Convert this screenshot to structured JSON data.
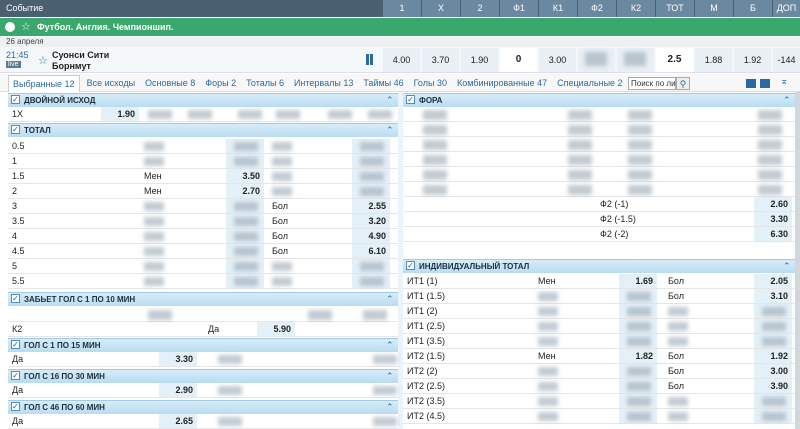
{
  "header": {
    "event_label": "Событие",
    "columns": [
      "1",
      "X",
      "2",
      "Ф1",
      "К1",
      "Ф2",
      "К2",
      "ТОТ",
      "М",
      "Б",
      "ДОП"
    ]
  },
  "league": "Футбол. Англия. Чемпионшип.",
  "date": "26 апреля",
  "match": {
    "time": "21:45",
    "live": "live",
    "team1": "Суонси Сити",
    "team2": "Борнмут",
    "odds": [
      "4.00",
      "3.70",
      "1.90",
      "0",
      "3.00",
      null,
      null,
      "2.5",
      "1.88",
      "1.92",
      "-144"
    ]
  },
  "tabs": [
    "Выбранные 12",
    "Все исходы",
    "Основные 8",
    "Форы 2",
    "Тоталы 6",
    "Интервалы 13",
    "Таймы 46",
    "Голы 30",
    "Комбинированные 47",
    "Специальные 2"
  ],
  "search_placeholder": "Поиск по лини",
  "left_markets": [
    {
      "title": "ДВОЙНОЙ ИСХОД",
      "rows": [
        {
          "label": "1X",
          "odds": "1.90"
        }
      ]
    },
    {
      "title": "ТОТАЛ",
      "rows": [
        {
          "label": "0.5"
        },
        {
          "label": "1"
        },
        {
          "label": "1.5",
          "under": "Мен",
          "under_odds": "3.50"
        },
        {
          "label": "2",
          "under": "Мен",
          "under_odds": "2.70"
        },
        {
          "label": "3",
          "over": "Бол",
          "over_odds": "2.55"
        },
        {
          "label": "3.5",
          "over": "Бол",
          "over_odds": "3.20"
        },
        {
          "label": "4",
          "over": "Бол",
          "over_odds": "4.90"
        },
        {
          "label": "4.5",
          "over": "Бол",
          "over_odds": "6.10"
        },
        {
          "label": "5"
        },
        {
          "label": "5.5"
        }
      ]
    },
    {
      "title": "ЗАБЬЕТ ГОЛ С 1 ПО 10 МИН",
      "rows": [
        {
          "label": "К2",
          "outcome": "Да",
          "odds": "5.90"
        }
      ]
    },
    {
      "title": "ГОЛ С 1 ПО 15 МИН",
      "rows": [
        {
          "label": "Да",
          "odds": "3.30"
        }
      ]
    },
    {
      "title": "ГОЛ С 16 ПО 30 МИН",
      "rows": [
        {
          "label": "Да",
          "odds": "2.90"
        }
      ]
    },
    {
      "title": "ГОЛ С 46 ПО 60 МИН",
      "rows": [
        {
          "label": "Да",
          "odds": "2.65"
        }
      ]
    }
  ],
  "right_markets": [
    {
      "title": "ФОРА",
      "rows": [
        {
          "outcome": "Ф2 (-1)",
          "odds": "2.60"
        },
        {
          "outcome": "Ф2 (-1.5)",
          "odds": "3.30"
        },
        {
          "outcome": "Ф2 (-2)",
          "odds": "6.30"
        }
      ]
    },
    {
      "title": "ИНДИВИДУАЛЬНЫЙ ТОТАЛ",
      "rows": [
        {
          "label": "ИТ1 (1)",
          "under": "Мен",
          "under_odds": "1.69",
          "over": "Бол",
          "over_odds": "2.05"
        },
        {
          "label": "ИТ1 (1.5)",
          "over": "Бол",
          "over_odds": "3.10"
        },
        {
          "label": "ИТ1 (2)"
        },
        {
          "label": "ИТ1 (2.5)"
        },
        {
          "label": "ИТ1 (3.5)"
        },
        {
          "label": "ИТ2 (1.5)",
          "under": "Мен",
          "under_odds": "1.82",
          "over": "Бол",
          "over_odds": "1.92"
        },
        {
          "label": "ИТ2 (2)",
          "over": "Бол",
          "over_odds": "3.00"
        },
        {
          "label": "ИТ2 (2.5)",
          "over": "Бол",
          "over_odds": "3.90"
        },
        {
          "label": "ИТ2 (3.5)"
        },
        {
          "label": "ИТ2 (4.5)"
        }
      ]
    }
  ]
}
